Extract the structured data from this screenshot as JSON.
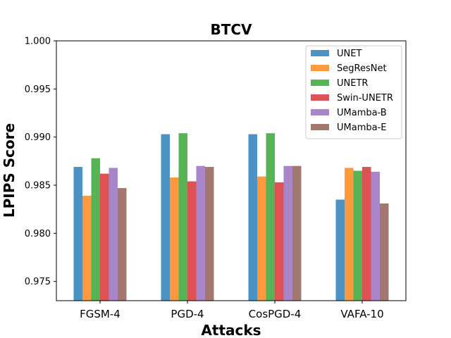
{
  "chart_data": {
    "type": "bar",
    "title": "BTCV",
    "xlabel": "Attacks",
    "ylabel": "LPIPS Score",
    "ylim": [
      0.973,
      1.0
    ],
    "yticks": [
      0.975,
      0.98,
      0.985,
      0.99,
      0.995,
      1.0
    ],
    "ytick_labels": [
      "0.975",
      "0.980",
      "0.985",
      "0.990",
      "0.995",
      "1.000"
    ],
    "categories": [
      "FGSM-4",
      "PGD-4",
      "CosPGD-4",
      "VAFA-10"
    ],
    "legend_position": "top-right",
    "series": [
      {
        "name": "UNET",
        "color": "#1f77b4",
        "values": [
          0.9869,
          0.9903,
          0.9903,
          0.9835
        ]
      },
      {
        "name": "SegResNet",
        "color": "#ff7f0e",
        "values": [
          0.9839,
          0.9858,
          0.9859,
          0.9868
        ]
      },
      {
        "name": "UNETR",
        "color": "#2ca02c",
        "values": [
          0.9878,
          0.9904,
          0.9904,
          0.9865
        ]
      },
      {
        "name": "Swin-UNETR",
        "color": "#d62728",
        "values": [
          0.9862,
          0.9854,
          0.9853,
          0.9869
        ]
      },
      {
        "name": "UMamba-B",
        "color": "#9467bd",
        "values": [
          0.9868,
          0.987,
          0.987,
          0.9864
        ]
      },
      {
        "name": "UMamba-E",
        "color": "#8c564b",
        "values": [
          0.9847,
          0.9869,
          0.987,
          0.9831
        ]
      }
    ]
  }
}
